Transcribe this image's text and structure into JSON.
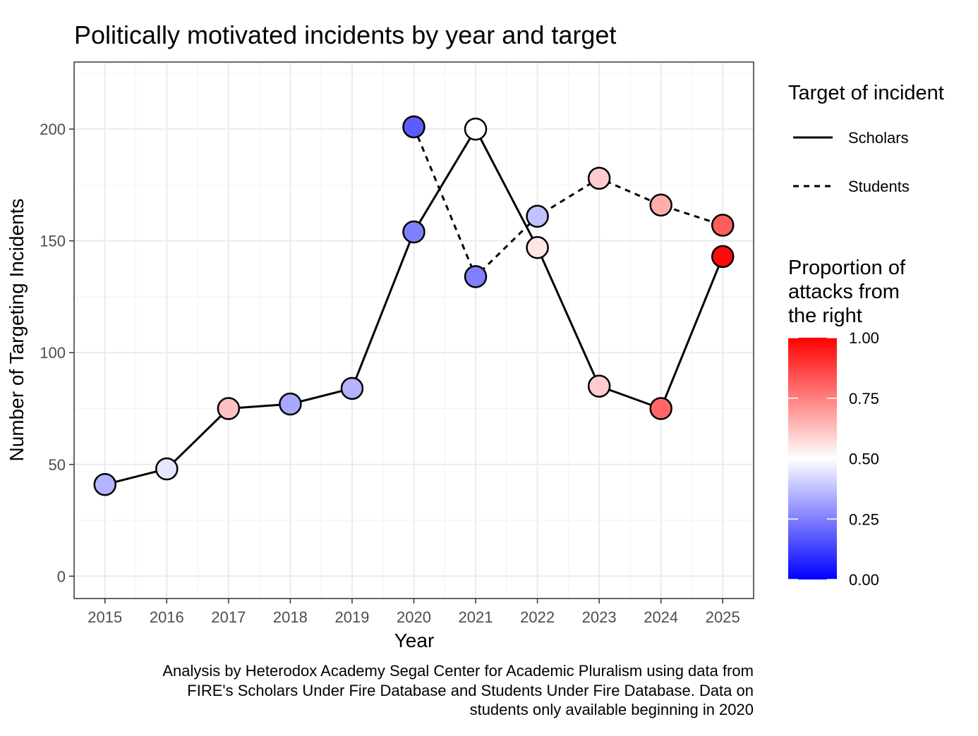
{
  "chart_data": {
    "type": "line",
    "title": "Politically motivated incidents by year and target",
    "xlabel": "Year",
    "ylabel": "Number of Targeting Incidents",
    "x": [
      2015,
      2016,
      2017,
      2018,
      2019,
      2020,
      2021,
      2022,
      2023,
      2024,
      2025
    ],
    "x_ticks": [
      "2015",
      "2016",
      "2017",
      "2018",
      "2019",
      "2020",
      "2021",
      "2022",
      "2023",
      "2024",
      "2025"
    ],
    "y_ticks": [
      "0",
      "50",
      "100",
      "150",
      "200"
    ],
    "ylim": [
      -10,
      230
    ],
    "xlim": [
      2014.5,
      2025.5
    ],
    "grid": true,
    "series": [
      {
        "name": "Scholars",
        "line_style": "solid",
        "points": [
          {
            "x": 2015,
            "y": 41,
            "proportion_right": 0.35
          },
          {
            "x": 2016,
            "y": 48,
            "proportion_right": 0.45
          },
          {
            "x": 2017,
            "y": 75,
            "proportion_right": 0.62
          },
          {
            "x": 2018,
            "y": 77,
            "proportion_right": 0.33
          },
          {
            "x": 2019,
            "y": 84,
            "proportion_right": 0.35
          },
          {
            "x": 2020,
            "y": 154,
            "proportion_right": 0.25
          },
          {
            "x": 2021,
            "y": 200,
            "proportion_right": 0.5
          },
          {
            "x": 2022,
            "y": 147,
            "proportion_right": 0.55
          },
          {
            "x": 2023,
            "y": 85,
            "proportion_right": 0.6
          },
          {
            "x": 2024,
            "y": 75,
            "proportion_right": 0.8
          },
          {
            "x": 2025,
            "y": 143,
            "proportion_right": 0.98
          }
        ]
      },
      {
        "name": "Students",
        "line_style": "dashed",
        "points": [
          {
            "x": 2020,
            "y": 201,
            "proportion_right": 0.18
          },
          {
            "x": 2021,
            "y": 134,
            "proportion_right": 0.25
          },
          {
            "x": 2022,
            "y": 161,
            "proportion_right": 0.38
          },
          {
            "x": 2023,
            "y": 178,
            "proportion_right": 0.6
          },
          {
            "x": 2024,
            "y": 166,
            "proportion_right": 0.66
          },
          {
            "x": 2025,
            "y": 157,
            "proportion_right": 0.82
          }
        ]
      }
    ],
    "legend_linetype": {
      "title": "Target of incident",
      "entries": [
        "Scholars",
        "Students"
      ]
    },
    "legend_color": {
      "title_lines": [
        "Proportion of",
        "attacks from",
        "the right"
      ],
      "ticks": [
        "1.00",
        "0.75",
        "0.50",
        "0.25",
        "0.00"
      ],
      "tick_values": [
        1.0,
        0.75,
        0.5,
        0.25,
        0.0
      ],
      "low_color": "#0000ff",
      "mid_color": "#ffffff",
      "high_color": "#ff0000"
    },
    "caption_lines": [
      "Analysis by Heterodox Academy Segal Center for Academic Pluralism using data from",
      "FIRE's Scholars Under Fire Database and Students Under Fire Database. Data on",
      "students only available beginning in 2020"
    ]
  }
}
